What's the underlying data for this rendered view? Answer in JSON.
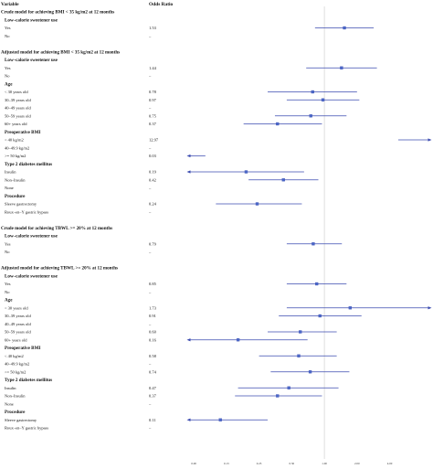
{
  "chart_data": {
    "type": "forest",
    "header": {
      "variable": "Variable",
      "or": "Odds Ratio"
    },
    "x": {
      "scale": "log",
      "min": 0.06,
      "max": 5.5,
      "reference": 1.0,
      "ticks": [
        "0.00",
        "0.13",
        "0.25",
        "0.50",
        "1.00",
        "2.00",
        "4.00"
      ]
    },
    "rows": [
      {
        "kind": "section",
        "label": "Crude model for achieving BMI < 35 kg/m2 at 12 months"
      },
      {
        "kind": "group",
        "label": "Low–calorie sweetener use"
      },
      {
        "kind": "item",
        "label": "Yes",
        "or": "1.53",
        "est": 1.53,
        "lo": 0.82,
        "hi": 2.85
      },
      {
        "kind": "item",
        "label": "No",
        "or": "–"
      },
      {
        "kind": "gap"
      },
      {
        "kind": "section",
        "label": "Adjusted model for achieving BMI < 35 kg/m2 at 12 months"
      },
      {
        "kind": "group",
        "label": "Low–calorie sweetener use"
      },
      {
        "kind": "item",
        "label": "Yes",
        "or": "1.44",
        "est": 1.44,
        "lo": 0.68,
        "hi": 3.05
      },
      {
        "kind": "item",
        "label": "No",
        "or": "–"
      },
      {
        "kind": "group",
        "label": "Age"
      },
      {
        "kind": "item",
        "label": "< 30 years old",
        "or": "0.78",
        "est": 0.78,
        "lo": 0.3,
        "hi": 2.0
      },
      {
        "kind": "item",
        "label": "30–39 years old",
        "or": "0.97",
        "est": 0.97,
        "lo": 0.45,
        "hi": 2.1
      },
      {
        "kind": "item",
        "label": "40–49 years old",
        "or": "–"
      },
      {
        "kind": "item",
        "label": "50–59 years old",
        "or": "0.75",
        "est": 0.75,
        "lo": 0.35,
        "hi": 1.6
      },
      {
        "kind": "item",
        "label": "60+ years old",
        "or": "0.37",
        "est": 0.37,
        "lo": 0.18,
        "hi": 0.95
      },
      {
        "kind": "group",
        "label": "Preoperative BMI"
      },
      {
        "kind": "item",
        "label": "< 40 kg/m2",
        "or": "12.97",
        "est": 12.97,
        "lo": 4.8,
        "hi": 35.0
      },
      {
        "kind": "item",
        "label": "40–49.9 kg/m2",
        "or": "–"
      },
      {
        "kind": "item",
        "label": ">= 50 kg/m2",
        "or": "0.03",
        "est": 0.03,
        "lo": 0.01,
        "hi": 0.08
      },
      {
        "kind": "group",
        "label": "Type 2 diabetes mellitus"
      },
      {
        "kind": "item",
        "label": "Insulin",
        "or": "0.19",
        "est": 0.19,
        "lo": 0.045,
        "hi": 0.65
      },
      {
        "kind": "item",
        "label": "Non–Insulin",
        "or": "0.42",
        "est": 0.42,
        "lo": 0.2,
        "hi": 0.88
      },
      {
        "kind": "item",
        "label": "None",
        "or": "–"
      },
      {
        "kind": "group",
        "label": "Procedure"
      },
      {
        "kind": "item",
        "label": "Sleeve gastrectomy",
        "or": "0.24",
        "est": 0.24,
        "lo": 0.1,
        "hi": 0.62
      },
      {
        "kind": "item",
        "label": "Roux–en–Y gastric bypass",
        "or": "–"
      },
      {
        "kind": "gap"
      },
      {
        "kind": "section",
        "label": "Crude model for achieving TBWL >= 20% at 12 months"
      },
      {
        "kind": "group",
        "label": "Low–calorie sweetener use"
      },
      {
        "kind": "item",
        "label": "Yes",
        "or": "0.79",
        "est": 0.79,
        "lo": 0.45,
        "hi": 1.45
      },
      {
        "kind": "item",
        "label": "No",
        "or": "–"
      },
      {
        "kind": "gap"
      },
      {
        "kind": "section",
        "label": "Adjusted model for achieving TBWL >= 20% at 12 months"
      },
      {
        "kind": "group",
        "label": "Low–calorie sweetener use"
      },
      {
        "kind": "item",
        "label": "Yes",
        "or": "0.85",
        "est": 0.85,
        "lo": 0.45,
        "hi": 1.6
      },
      {
        "kind": "item",
        "label": "No",
        "or": "–"
      },
      {
        "kind": "group",
        "label": "Age"
      },
      {
        "kind": "item",
        "label": "< 30 years old",
        "or": "1.73",
        "est": 1.73,
        "lo": 0.45,
        "hi": 6.5
      },
      {
        "kind": "item",
        "label": "30–39 years old",
        "or": "0.91",
        "est": 0.91,
        "lo": 0.38,
        "hi": 2.2
      },
      {
        "kind": "item",
        "label": "40–49 years old",
        "or": "–"
      },
      {
        "kind": "item",
        "label": "50–59 years old",
        "or": "0.60",
        "est": 0.6,
        "lo": 0.3,
        "hi": 1.3
      },
      {
        "kind": "item",
        "label": "60+ years old",
        "or": "0.16",
        "est": 0.16,
        "lo": 0.025,
        "hi": 0.7
      },
      {
        "kind": "group",
        "label": "Preoperative BMI"
      },
      {
        "kind": "item",
        "label": "< 40 kg/m2",
        "or": "0.58",
        "est": 0.58,
        "lo": 0.25,
        "hi": 1.3
      },
      {
        "kind": "item",
        "label": "40–49.9 kg/m2",
        "or": "–"
      },
      {
        "kind": "item",
        "label": ">= 50 kg/m2",
        "or": "0.74",
        "est": 0.74,
        "lo": 0.32,
        "hi": 1.7
      },
      {
        "kind": "group",
        "label": "Type 2 diabetes mellitus"
      },
      {
        "kind": "item",
        "label": "Insulin",
        "or": "0.47",
        "est": 0.47,
        "lo": 0.16,
        "hi": 1.35
      },
      {
        "kind": "item",
        "label": "Non–Insulin",
        "or": "0.37",
        "est": 0.37,
        "lo": 0.15,
        "hi": 0.95
      },
      {
        "kind": "item",
        "label": "None",
        "or": "–"
      },
      {
        "kind": "group",
        "label": "Procedure"
      },
      {
        "kind": "item",
        "label": "Sleeve gastrectomy",
        "or": "0.11",
        "est": 0.11,
        "lo": 0.04,
        "hi": 0.3
      },
      {
        "kind": "item",
        "label": "Roux–en–Y gastric bypass",
        "or": "–"
      }
    ]
  }
}
